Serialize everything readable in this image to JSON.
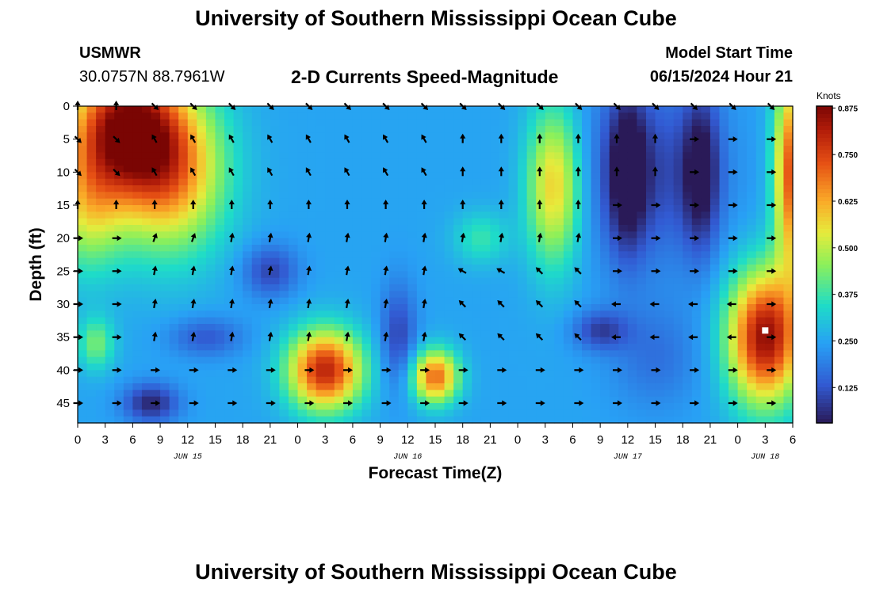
{
  "header": {
    "title": "University of Southern Mississippi Ocean Cube",
    "station": "USMWR",
    "coordinates": "30.0757N  88.7961W",
    "subtitle": "2-D Currents Speed-Magnitude",
    "model_start_label": "Model Start Time",
    "model_start_value": "06/15/2024 Hour 21"
  },
  "footer": {
    "title": "University of Southern Mississippi Ocean Cube"
  },
  "chart_data": {
    "type": "heatmap",
    "title": "2-D Currents Speed-Magnitude",
    "xlabel": "Forecast Time(Z)",
    "ylabel": "Depth (ft)",
    "x_tick_labels": [
      "0",
      "3",
      "6",
      "9",
      "12",
      "15",
      "18",
      "21",
      "0",
      "3",
      "6",
      "9",
      "12",
      "15",
      "18",
      "21",
      "0",
      "3",
      "6",
      "9",
      "12",
      "15",
      "18",
      "21",
      "0",
      "3",
      "6"
    ],
    "day_labels": [
      {
        "label": "JUN 15",
        "hour": 12
      },
      {
        "label": "JUN 16",
        "hour": 36
      },
      {
        "label": "JUN 17",
        "hour": 60
      },
      {
        "label": "JUN 18",
        "hour": 75
      }
    ],
    "x_range_hours": [
      0,
      78
    ],
    "y_ticks": [
      0,
      5,
      10,
      15,
      20,
      25,
      30,
      35,
      40,
      45
    ],
    "y_range_ft": [
      0,
      48
    ],
    "colorbar": {
      "unit_label": "Knots",
      "ticks": [
        "0.875",
        "0.750",
        "0.625",
        "0.500",
        "0.375",
        "0.250",
        "0.125"
      ],
      "range": [
        0.03,
        0.88
      ]
    },
    "speed_blobs_knots": [
      {
        "t": 5,
        "d": 3,
        "amp": 0.55,
        "st": 6,
        "sd": 10
      },
      {
        "t": 10,
        "d": 10,
        "amp": 0.4,
        "st": 6,
        "sd": 12
      },
      {
        "t": 1,
        "d": 15,
        "amp": 0.25,
        "st": 4,
        "sd": 10
      },
      {
        "t": 2,
        "d": 36,
        "amp": 0.18,
        "st": 2,
        "sd": 4
      },
      {
        "t": 8,
        "d": 45,
        "amp": -0.2,
        "st": 3,
        "sd": 3
      },
      {
        "t": 14,
        "d": 35,
        "amp": -0.12,
        "st": 4,
        "sd": 3
      },
      {
        "t": 21,
        "d": 25,
        "amp": -0.15,
        "st": 3,
        "sd": 4
      },
      {
        "t": 27,
        "d": 40,
        "amp": 0.55,
        "st": 4,
        "sd": 6
      },
      {
        "t": 39,
        "d": 41,
        "amp": 0.45,
        "st": 2.5,
        "sd": 4
      },
      {
        "t": 35,
        "d": 35,
        "amp": -0.15,
        "st": 2,
        "sd": 8
      },
      {
        "t": 44,
        "d": 20,
        "amp": 0.12,
        "st": 3,
        "sd": 4
      },
      {
        "t": 52,
        "d": 12,
        "amp": 0.35,
        "st": 3,
        "sd": 12
      },
      {
        "t": 62,
        "d": 10,
        "amp": -0.15,
        "st": 8,
        "sd": 14
      },
      {
        "t": 60,
        "d": 10,
        "amp": -0.2,
        "st": 2,
        "sd": 12
      },
      {
        "t": 68,
        "d": 10,
        "amp": -0.2,
        "st": 2,
        "sd": 12
      },
      {
        "t": 57,
        "d": 34,
        "amp": -0.15,
        "st": 3,
        "sd": 3
      },
      {
        "t": 63,
        "d": 38,
        "amp": -0.08,
        "st": 5,
        "sd": 8
      },
      {
        "t": 75,
        "d": 35,
        "amp": 0.6,
        "st": 4,
        "sd": 10
      },
      {
        "t": 78,
        "d": 10,
        "amp": 0.5,
        "st": 2,
        "sd": 15
      }
    ],
    "speed_base_knots": 0.25,
    "arrow_rows_ft": [
      0,
      5,
      10,
      15,
      20,
      25,
      30,
      35,
      40,
      45
    ],
    "arrow_directions_deg": [
      [
        0,
        135,
        135,
        135,
        135,
        135,
        135,
        135,
        135,
        135
      ],
      [
        135,
        -30,
        -30,
        -30,
        -30,
        0,
        0,
        0,
        90,
        90
      ],
      [
        135,
        -30,
        -30,
        -30,
        -30,
        0,
        0,
        0,
        90,
        90
      ],
      [
        0,
        0,
        0,
        0,
        0,
        0,
        0,
        90,
        90,
        90
      ],
      [
        90,
        20,
        10,
        10,
        10,
        10,
        10,
        90,
        90,
        90
      ],
      [
        90,
        10,
        10,
        10,
        10,
        -60,
        -45,
        90,
        90,
        90
      ],
      [
        90,
        10,
        10,
        10,
        10,
        -45,
        -45,
        -90,
        -90,
        90
      ],
      [
        90,
        10,
        10,
        10,
        10,
        -45,
        -45,
        -90,
        -90,
        90
      ],
      [
        90,
        90,
        90,
        90,
        90,
        90,
        90,
        90,
        90,
        90
      ],
      [
        90,
        90,
        90,
        90,
        90,
        90,
        90,
        90,
        90,
        90
      ]
    ],
    "marker": {
      "hour": 75,
      "depth": 34
    }
  }
}
